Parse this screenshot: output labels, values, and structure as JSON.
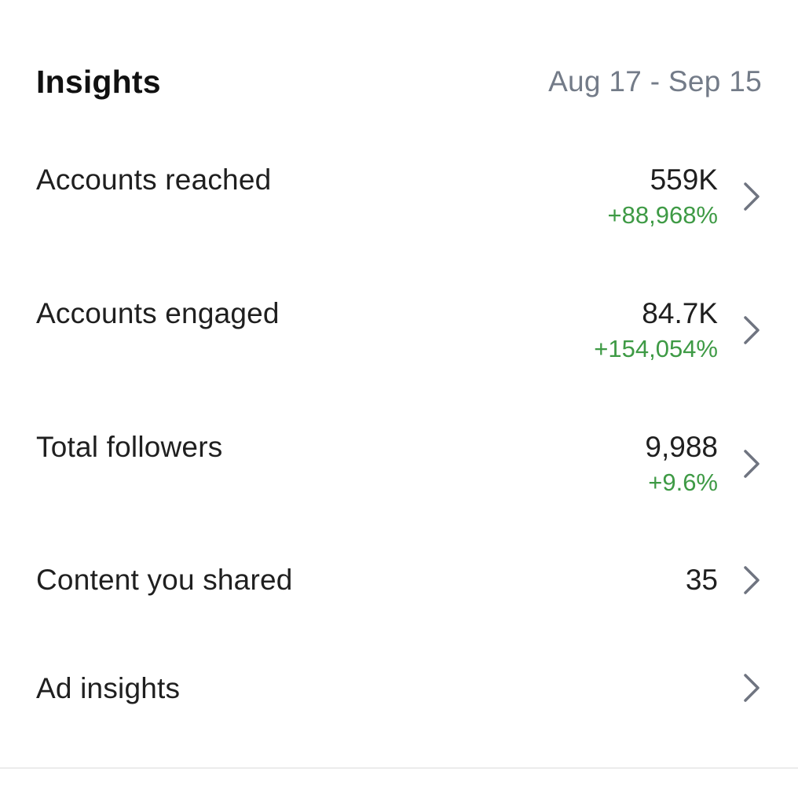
{
  "header": {
    "title": "Insights",
    "date_range": "Aug 17 - Sep 15"
  },
  "rows": [
    {
      "label": "Accounts reached",
      "value": "559K",
      "change": "+88,968%"
    },
    {
      "label": "Accounts engaged",
      "value": "84.7K",
      "change": "+154,054%"
    },
    {
      "label": "Total followers",
      "value": "9,988",
      "change": "+9.6%"
    },
    {
      "label": "Content you shared",
      "value": "35"
    },
    {
      "label": "Ad insights"
    }
  ],
  "icons": {
    "row_chevron": "chevron-right-icon"
  },
  "colors": {
    "positive_change": "#3e9a45",
    "date_range": "#737b88",
    "chevron": "#6f7480"
  }
}
